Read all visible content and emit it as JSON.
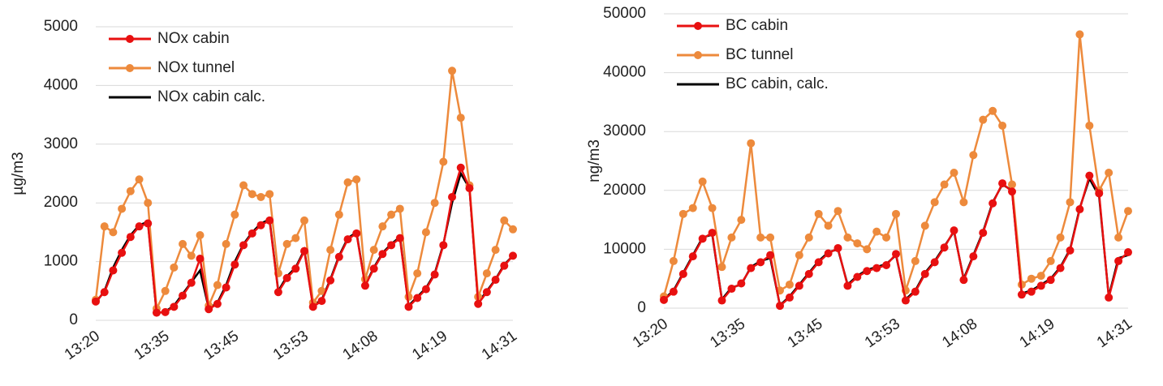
{
  "chart_data": [
    {
      "type": "line",
      "y_label": "µg/m3",
      "categories": [
        "13:20",
        null,
        null,
        null,
        null,
        null,
        null,
        null,
        "13:35",
        null,
        null,
        null,
        null,
        null,
        null,
        null,
        "13:45",
        null,
        null,
        null,
        null,
        null,
        null,
        null,
        "13:53",
        null,
        null,
        null,
        null,
        null,
        null,
        null,
        "14:08",
        null,
        null,
        null,
        null,
        null,
        null,
        null,
        "14:19",
        null,
        null,
        null,
        null,
        null,
        null,
        null,
        "14:31"
      ],
      "ylim": [
        0,
        5000
      ],
      "yticks": [
        0,
        1000,
        2000,
        3000,
        4000,
        5000
      ],
      "grid": true,
      "series": [
        {
          "name": "NOx cabin",
          "color": "#e81010",
          "markers": true,
          "values": [
            320,
            480,
            850,
            1150,
            1420,
            1600,
            1650,
            130,
            140,
            230,
            420,
            640,
            1050,
            190,
            280,
            560,
            950,
            1280,
            1480,
            1620,
            1700,
            480,
            720,
            880,
            1180,
            230,
            330,
            680,
            1080,
            1380,
            1480,
            590,
            880,
            1130,
            1280,
            1400,
            230,
            380,
            530,
            780,
            1280,
            2100,
            2600,
            2250,
            280,
            480,
            690,
            930,
            1100
          ]
        },
        {
          "name": "NOx tunnel",
          "color": "#ed8a3c",
          "markers": true,
          "values": [
            350,
            1600,
            1500,
            1900,
            2200,
            2400,
            2000,
            200,
            500,
            900,
            1300,
            1100,
            1450,
            250,
            600,
            1300,
            1800,
            2300,
            2150,
            2100,
            2150,
            800,
            1300,
            1400,
            1700,
            300,
            500,
            1200,
            1800,
            2350,
            2400,
            700,
            1200,
            1600,
            1800,
            1900,
            400,
            800,
            1500,
            2000,
            2700,
            4250,
            3450,
            2300,
            400,
            800,
            1200,
            1700,
            1550
          ]
        },
        {
          "name": "NOx cabin calc.",
          "color": "#000000",
          "markers": false,
          "values": [
            300,
            500,
            900,
            1200,
            1450,
            1620,
            1680,
            120,
            150,
            250,
            450,
            650,
            850,
            200,
            300,
            600,
            1000,
            1300,
            1500,
            1650,
            1720,
            500,
            750,
            900,
            1200,
            250,
            350,
            700,
            1100,
            1400,
            1500,
            600,
            900,
            1150,
            1300,
            1420,
            250,
            400,
            550,
            800,
            1300,
            2000,
            2500,
            2250,
            300,
            500,
            700,
            950,
            1100
          ]
        }
      ]
    },
    {
      "type": "line",
      "y_label": "ng/m3",
      "categories": [
        "13:20",
        null,
        null,
        null,
        null,
        null,
        null,
        null,
        "13:35",
        null,
        null,
        null,
        null,
        null,
        null,
        null,
        "13:45",
        null,
        null,
        null,
        null,
        null,
        null,
        null,
        "13:53",
        null,
        null,
        null,
        null,
        null,
        null,
        null,
        "14:08",
        null,
        null,
        null,
        null,
        null,
        null,
        null,
        "14:19",
        null,
        null,
        null,
        null,
        null,
        null,
        null,
        "14:31"
      ],
      "ylim": [
        0,
        50000
      ],
      "yticks": [
        0,
        10000,
        20000,
        30000,
        40000,
        50000
      ],
      "grid": true,
      "series": [
        {
          "name": "BC cabin",
          "color": "#e81010",
          "markers": true,
          "values": [
            1400,
            2800,
            5800,
            8800,
            11800,
            12800,
            1300,
            3300,
            4200,
            6800,
            7800,
            9000,
            400,
            1800,
            3800,
            5800,
            7800,
            9300,
            10200,
            3800,
            5300,
            6300,
            6800,
            7300,
            9200,
            1300,
            2800,
            5800,
            7800,
            10300,
            13200,
            4800,
            8800,
            12800,
            17800,
            21200,
            19800,
            2300,
            2800,
            3800,
            4800,
            6800,
            9800,
            16800,
            22500,
            19500,
            1800,
            8000,
            9500
          ]
        },
        {
          "name": "BC tunnel",
          "color": "#ed8a3c",
          "markers": true,
          "values": [
            2000,
            8000,
            16000,
            17000,
            21500,
            17000,
            7000,
            12000,
            15000,
            28000,
            12000,
            12000,
            3000,
            4000,
            9000,
            12000,
            16000,
            14000,
            16500,
            12000,
            11000,
            10000,
            13000,
            12000,
            16000,
            3000,
            8000,
            14000,
            18000,
            21000,
            23000,
            18000,
            26000,
            32000,
            33500,
            31000,
            21000,
            4000,
            5000,
            5500,
            8000,
            12000,
            18000,
            46500,
            31000,
            20000,
            23000,
            12000,
            16500
          ]
        },
        {
          "name": "BC cabin, calc.",
          "color": "#000000",
          "markers": false,
          "values": [
            1500,
            3000,
            6000,
            9000,
            12000,
            12500,
            1500,
            3500,
            4000,
            7000,
            8000,
            8500,
            500,
            2000,
            4000,
            6000,
            8000,
            9500,
            10000,
            4000,
            5500,
            6500,
            7000,
            7500,
            9000,
            1500,
            3000,
            6000,
            8000,
            10500,
            13000,
            5000,
            9000,
            13000,
            18000,
            21000,
            20000,
            2500,
            3000,
            4000,
            5000,
            7000,
            10000,
            17000,
            22000,
            19000,
            2000,
            8500,
            9000
          ]
        }
      ]
    }
  ]
}
